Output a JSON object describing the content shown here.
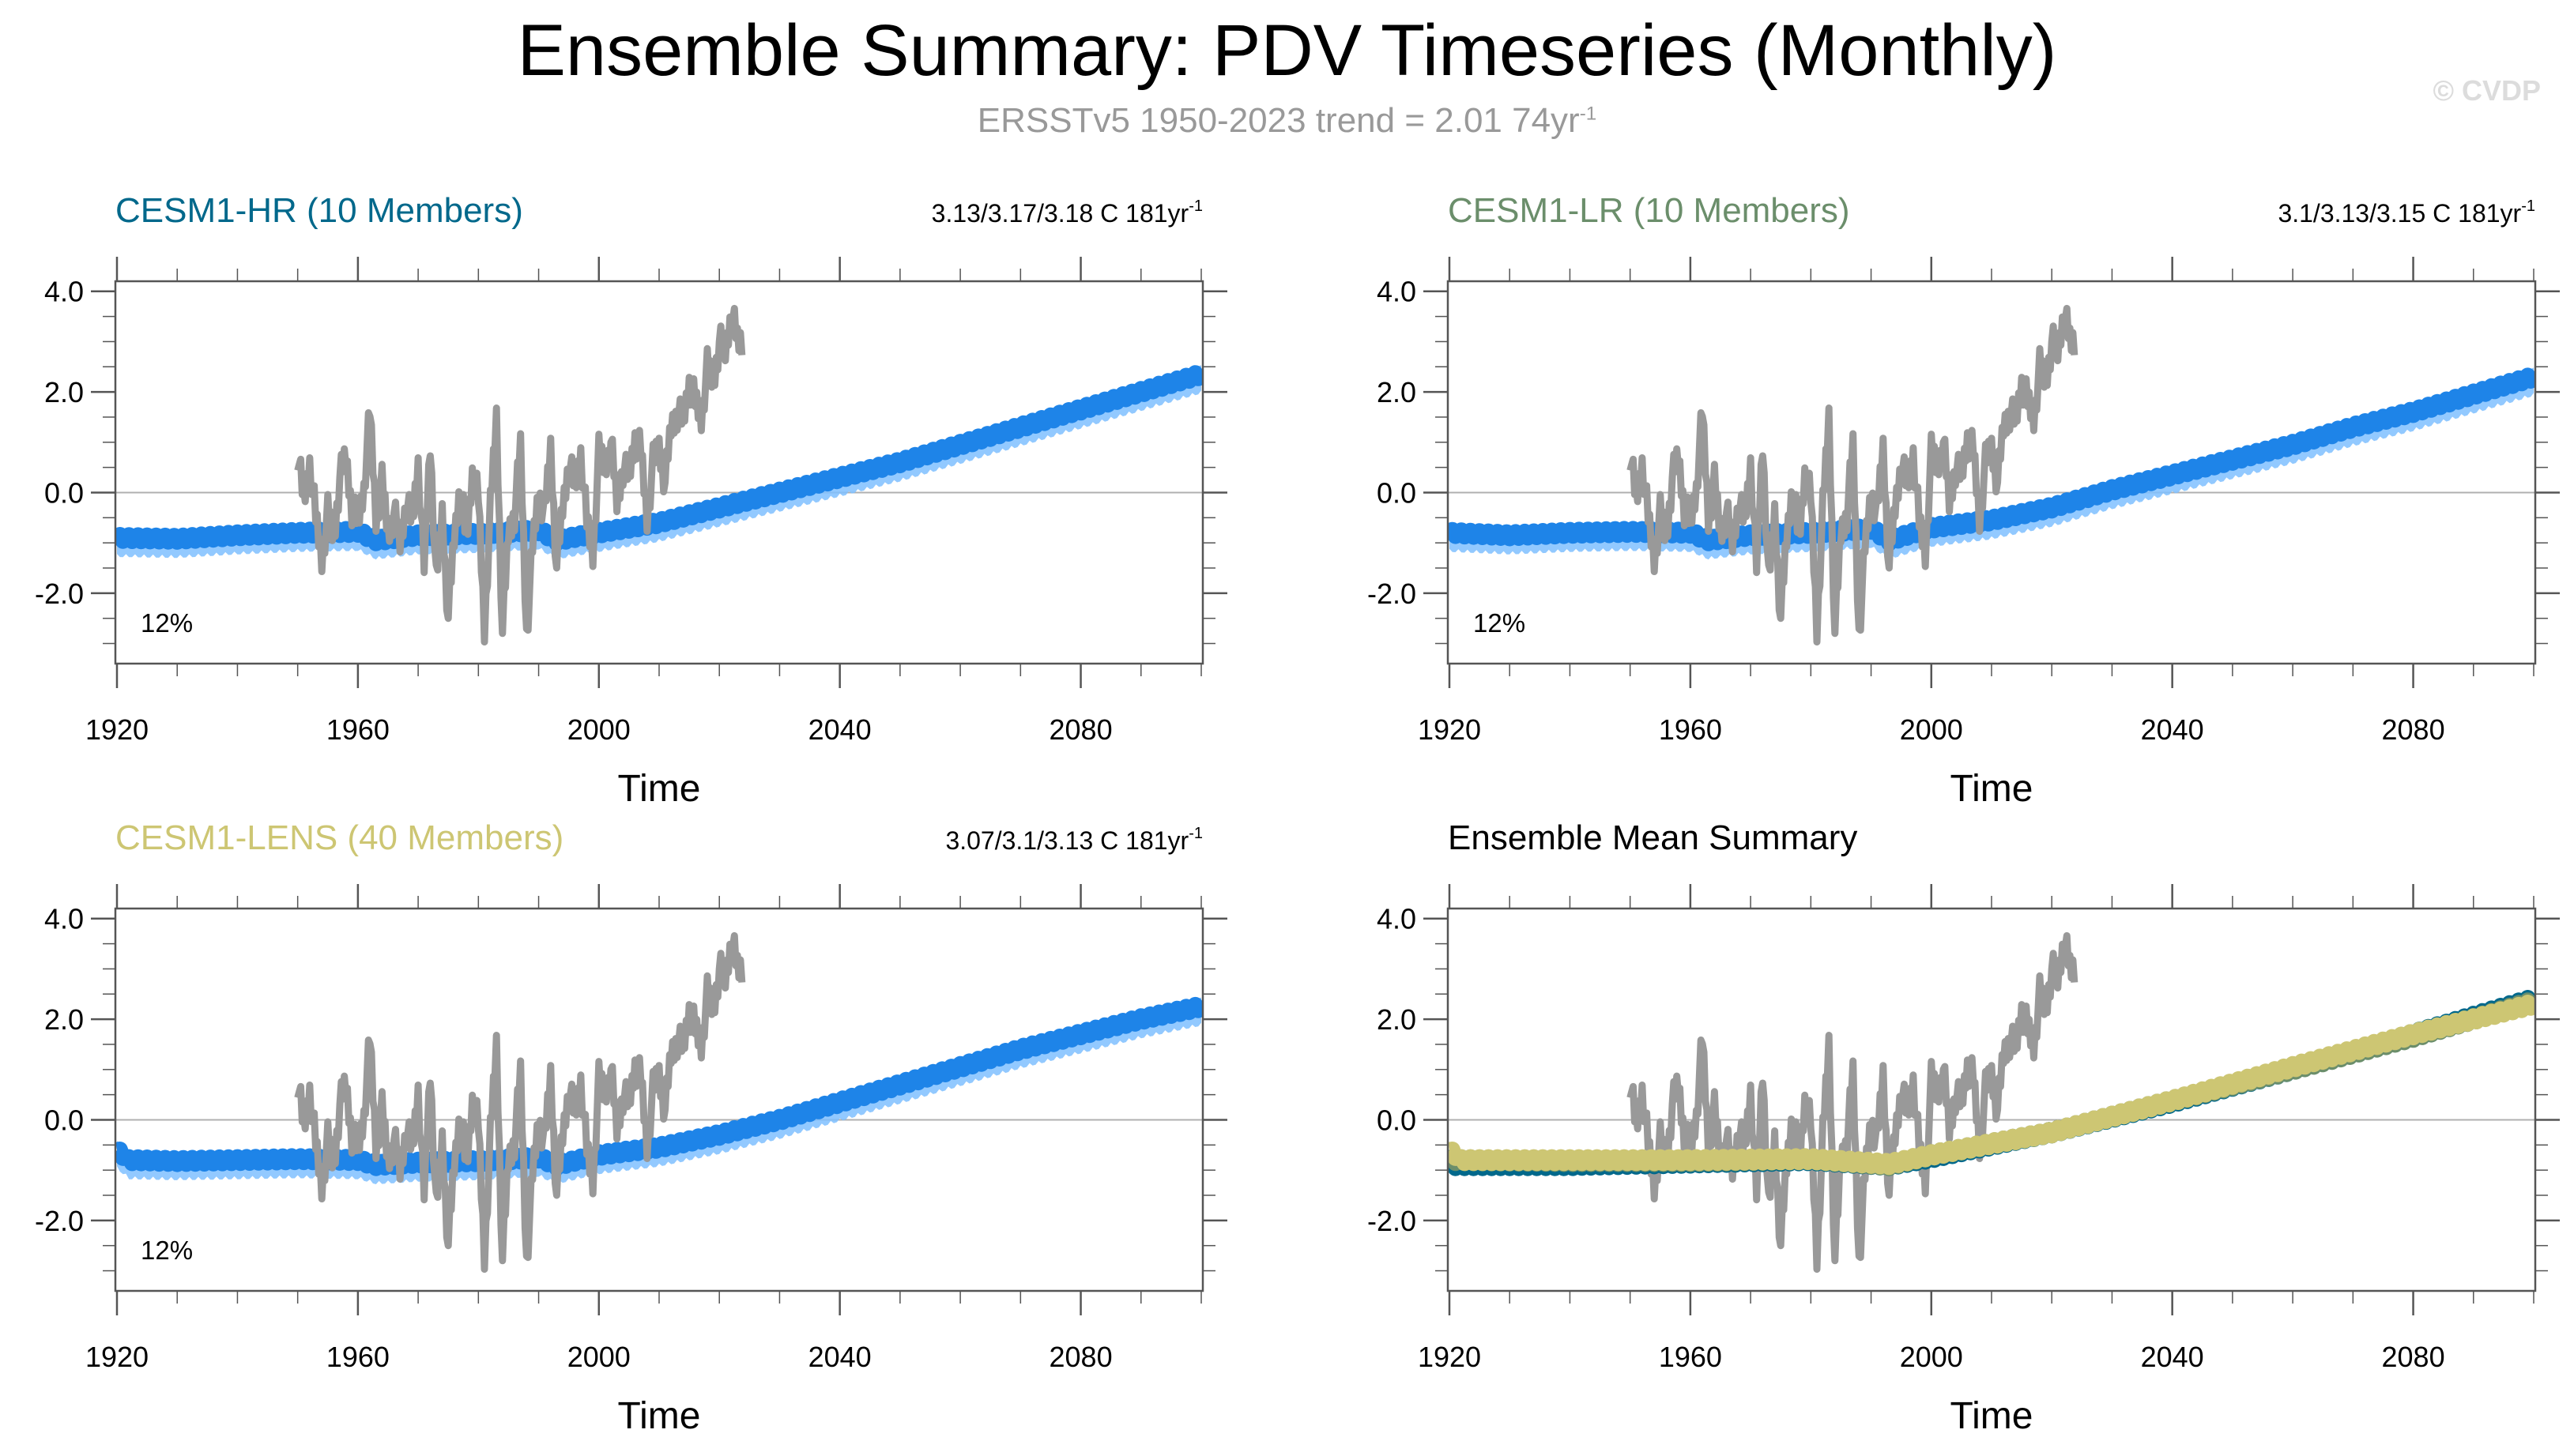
{
  "header": {
    "title": "Ensemble Summary: PDV Timeseries (Monthly)",
    "subtitle_main": "ERSSTv5 1950-2023 trend = 2.01 74yr",
    "subtitle_sup": "-1",
    "watermark": "© CVDP"
  },
  "colors": {
    "observation": "#999999",
    "ensemble_band": "#7fbfff",
    "ensemble_mean": "#1e84e8",
    "cesm1_hr": "#00688b",
    "cesm1_lr": "#6b8e6b",
    "cesm1_lens": "#cdc673",
    "zero_line": "#b0b0b0"
  },
  "chart_data": [
    {
      "type": "line",
      "panel": "top-left",
      "title": "CESM1-HR (10 Members)",
      "title_color": "#00688b",
      "trend_label": "3.13/3.17/3.18 C 181yr",
      "trend_sup": "-1",
      "percent_label": "12%",
      "xlabel": "Time",
      "ylabel": "",
      "xlim": [
        1920,
        2100
      ],
      "ylim": [
        -3.4,
        4.2
      ],
      "xticks": [
        1920,
        1960,
        2000,
        2040,
        2080
      ],
      "yticks": [
        4.0,
        2.0,
        0.0,
        -2.0
      ],
      "ytick_labels": [
        "4.0",
        "2.0",
        "0.0",
        "-2.0"
      ],
      "xtick_labels": [
        "1920",
        "1960",
        "2000",
        "2040",
        "2080"
      ],
      "zero_line": true,
      "series": [
        {
          "name": "CESM1-HR ensemble mean",
          "style": "band",
          "x": [
            1920,
            1930,
            1940,
            1950,
            1960,
            1963,
            1970,
            1980,
            1990,
            1993,
            2000,
            2010,
            2020,
            2030,
            2040,
            2050,
            2060,
            2070,
            2080,
            2090,
            2100
          ],
          "values": [
            -0.9,
            -0.92,
            -0.85,
            -0.8,
            -0.78,
            -0.95,
            -0.85,
            -0.82,
            -0.75,
            -0.95,
            -0.8,
            -0.6,
            -0.3,
            0.0,
            0.3,
            0.6,
            0.95,
            1.3,
            1.65,
            2.0,
            2.35
          ]
        }
      ]
    },
    {
      "type": "line",
      "panel": "top-right",
      "title": "CESM1-LR (10 Members)",
      "title_color": "#6b8e6b",
      "trend_label": "3.1/3.13/3.15 C 181yr",
      "trend_sup": "-1",
      "percent_label": "12%",
      "xlabel": "Time",
      "ylabel": "",
      "xlim": [
        1920,
        2100
      ],
      "ylim": [
        -3.4,
        4.2
      ],
      "xticks": [
        1920,
        1960,
        2000,
        2040,
        2080
      ],
      "yticks": [
        4.0,
        2.0,
        0.0,
        -2.0
      ],
      "ytick_labels": [
        "4.0",
        "2.0",
        "0.0",
        "-2.0"
      ],
      "xtick_labels": [
        "1920",
        "1960",
        "2000",
        "2040",
        "2080"
      ],
      "zero_line": true,
      "series": [
        {
          "name": "CESM1-LR ensemble mean",
          "style": "band",
          "x": [
            1920,
            1930,
            1940,
            1950,
            1960,
            1963,
            1970,
            1980,
            1990,
            1993,
            2000,
            2010,
            2020,
            2030,
            2040,
            2050,
            2060,
            2070,
            2080,
            2090,
            2100
          ],
          "values": [
            -0.8,
            -0.85,
            -0.8,
            -0.78,
            -0.8,
            -0.95,
            -0.85,
            -0.8,
            -0.72,
            -0.95,
            -0.7,
            -0.55,
            -0.3,
            0.05,
            0.35,
            0.65,
            0.95,
            1.3,
            1.6,
            1.95,
            2.3
          ]
        }
      ]
    },
    {
      "type": "line",
      "panel": "bottom-left",
      "title": "CESM1-LENS (40 Members)",
      "title_color": "#cdc673",
      "trend_label": "3.07/3.1/3.13 C 181yr",
      "trend_sup": "-1",
      "percent_label": "12%",
      "xlabel": "Time",
      "ylabel": "",
      "xlim": [
        1920,
        2100
      ],
      "ylim": [
        -3.4,
        4.2
      ],
      "xticks": [
        1920,
        1960,
        2000,
        2040,
        2080
      ],
      "yticks": [
        4.0,
        2.0,
        0.0,
        -2.0
      ],
      "ytick_labels": [
        "4.0",
        "2.0",
        "0.0",
        "-2.0"
      ],
      "xtick_labels": [
        "1920",
        "1960",
        "2000",
        "2040",
        "2080"
      ],
      "zero_line": true,
      "series": [
        {
          "name": "CESM1-LENS ensemble mean",
          "style": "band",
          "x": [
            1920,
            1922,
            1930,
            1940,
            1950,
            1960,
            1963,
            1970,
            1980,
            1990,
            1993,
            2000,
            2010,
            2020,
            2030,
            2040,
            2050,
            2060,
            2070,
            2080,
            2090,
            2100
          ],
          "values": [
            -0.6,
            -0.8,
            -0.82,
            -0.8,
            -0.78,
            -0.8,
            -0.9,
            -0.85,
            -0.82,
            -0.75,
            -0.9,
            -0.7,
            -0.55,
            -0.3,
            0.0,
            0.35,
            0.7,
            1.05,
            1.4,
            1.7,
            2.0,
            2.25
          ]
        }
      ]
    },
    {
      "type": "line",
      "panel": "bottom-right",
      "title": "Ensemble Mean Summary",
      "title_color": "#000000",
      "trend_label": "",
      "percent_label": "",
      "xlabel": "Time",
      "ylabel": "",
      "xlim": [
        1920,
        2100
      ],
      "ylim": [
        -3.4,
        4.2
      ],
      "xticks": [
        1920,
        1960,
        2000,
        2040,
        2080
      ],
      "yticks": [
        4.0,
        2.0,
        0.0,
        -2.0
      ],
      "ytick_labels": [
        "4.0",
        "2.0",
        "0.0",
        "-2.0"
      ],
      "xtick_labels": [
        "1920",
        "1960",
        "2000",
        "2040",
        "2080"
      ],
      "zero_line": true,
      "series": [
        {
          "name": "CESM1-HR",
          "style": "mean",
          "color_key": "cesm1_hr",
          "x": [
            1920,
            1940,
            1960,
            1980,
            1993,
            2000,
            2020,
            2040,
            2060,
            2080,
            2100
          ],
          "values": [
            -0.9,
            -0.9,
            -0.85,
            -0.8,
            -0.9,
            -0.75,
            -0.25,
            0.35,
            1.0,
            1.7,
            2.4
          ]
        },
        {
          "name": "CESM1-LR",
          "style": "mean",
          "color_key": "cesm1_lr",
          "x": [
            1920,
            1940,
            1960,
            1980,
            1993,
            2000,
            2020,
            2040,
            2060,
            2080,
            2100
          ],
          "values": [
            -0.8,
            -0.82,
            -0.82,
            -0.78,
            -0.9,
            -0.7,
            -0.25,
            0.38,
            1.0,
            1.65,
            2.35
          ]
        },
        {
          "name": "CESM1-LENS",
          "style": "mean",
          "color_key": "cesm1_lens",
          "x": [
            1920,
            1922,
            1940,
            1960,
            1980,
            1993,
            2000,
            2020,
            2040,
            2060,
            2080,
            2100
          ],
          "values": [
            -0.6,
            -0.8,
            -0.8,
            -0.8,
            -0.78,
            -0.88,
            -0.7,
            -0.25,
            0.38,
            1.05,
            1.7,
            2.3
          ]
        }
      ]
    }
  ],
  "observations": {
    "name": "ERSSTv5",
    "x": [
      1950,
      1951,
      1952,
      1953,
      1954,
      1955,
      1956,
      1957,
      1958,
      1959,
      1960,
      1961,
      1962,
      1963,
      1964,
      1965,
      1966,
      1967,
      1968,
      1969,
      1970,
      1971,
      1972,
      1973,
      1974,
      1975,
      1976,
      1977,
      1978,
      1979,
      1980,
      1981,
      1982,
      1983,
      1984,
      1985,
      1986,
      1987,
      1988,
      1989,
      1990,
      1991,
      1992,
      1993,
      1994,
      1995,
      1996,
      1997,
      1998,
      1999,
      2000,
      2001,
      2002,
      2003,
      2004,
      2005,
      2006,
      2007,
      2008,
      2009,
      2010,
      2011,
      2012,
      2013,
      2014,
      2015,
      2016,
      2017,
      2018,
      2019,
      2020,
      2021,
      2022,
      2023
    ],
    "values": [
      0.8,
      -0.2,
      0.6,
      -0.5,
      -1.3,
      -0.4,
      -0.9,
      0.3,
      0.7,
      -0.3,
      -0.6,
      0.1,
      1.6,
      -0.5,
      0.2,
      -0.8,
      -0.4,
      -1.0,
      -0.2,
      -0.6,
      0.6,
      -1.5,
      1.0,
      -1.8,
      -0.4,
      -2.5,
      -0.9,
      0.2,
      -1.0,
      0.4,
      -0.1,
      -2.7,
      -0.3,
      1.5,
      -2.8,
      -0.8,
      -0.4,
      0.9,
      -2.8,
      -1.1,
      0.0,
      -0.4,
      0.9,
      -1.5,
      -0.3,
      0.6,
      0.1,
      0.8,
      -0.6,
      -1.2,
      0.8,
      0.5,
      1.0,
      -0.2,
      0.5,
      0.3,
      1.1,
      0.8,
      -0.5,
      0.6,
      0.9,
      0.2,
      1.3,
      1.6,
      1.4,
      2.2,
      1.8,
      1.5,
      2.5,
      2.2,
      3.0,
      2.8,
      3.6,
      3.0
    ]
  }
}
